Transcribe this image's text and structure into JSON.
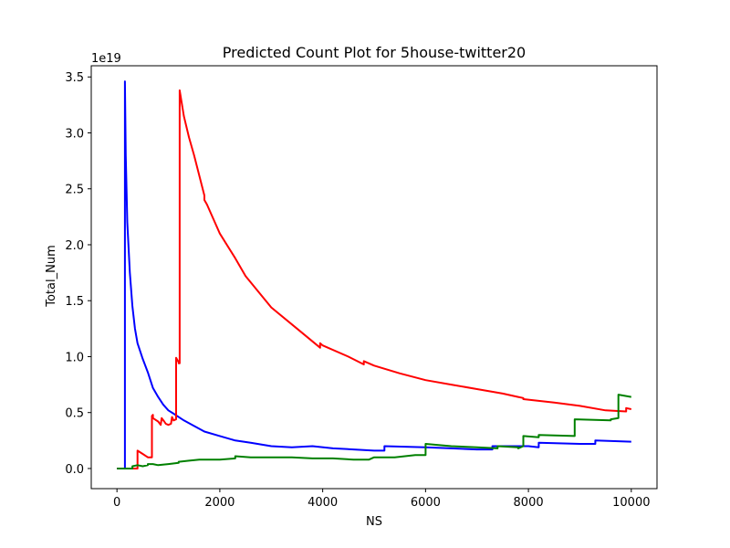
{
  "chart_data": {
    "type": "line",
    "title": "Predicted Count Plot for 5house-twitter20",
    "xlabel": "NS",
    "ylabel": "Total_Num",
    "y_multiplier_label": "1e19",
    "xlim": [
      -500,
      10500
    ],
    "ylim": [
      -0.18,
      3.6
    ],
    "grid": false,
    "legend": "none",
    "x_ticks": [
      0,
      2000,
      4000,
      6000,
      8000,
      10000
    ],
    "x_tick_labels": [
      "0",
      "2000",
      "4000",
      "6000",
      "8000",
      "10000"
    ],
    "y_ticks": [
      0,
      0.5,
      1.0,
      1.5,
      2.0,
      2.5,
      3.0,
      3.5
    ],
    "y_tick_labels": [
      "0.0",
      "0.5",
      "1.0",
      "1.5",
      "2.0",
      "2.5",
      "3.0",
      "3.5"
    ],
    "series": [
      {
        "color": "#0000ff",
        "x": [
          0,
          100,
          155,
          155,
          170,
          200,
          250,
          300,
          350,
          400,
          500,
          600,
          700,
          800,
          900,
          1000,
          1100,
          1200,
          1300,
          1500,
          1700,
          2000,
          2300,
          2600,
          3000,
          3400,
          3800,
          4200,
          4600,
          5000,
          5200,
          5200,
          6000,
          6500,
          7000,
          7300,
          7300,
          8000,
          8200,
          8200,
          9000,
          9300,
          9300,
          10000
        ],
        "y": [
          0,
          0,
          0,
          3.46,
          2.8,
          2.2,
          1.75,
          1.45,
          1.25,
          1.12,
          0.98,
          0.86,
          0.72,
          0.64,
          0.57,
          0.52,
          0.49,
          0.46,
          0.43,
          0.38,
          0.33,
          0.29,
          0.25,
          0.23,
          0.2,
          0.19,
          0.2,
          0.18,
          0.17,
          0.16,
          0.16,
          0.2,
          0.19,
          0.18,
          0.17,
          0.17,
          0.2,
          0.2,
          0.19,
          0.23,
          0.22,
          0.22,
          0.25,
          0.24
        ]
      },
      {
        "color": "#ff0000",
        "x": [
          0,
          380,
          400,
          400,
          500,
          600,
          680,
          680,
          700,
          700,
          800,
          850,
          870,
          920,
          950,
          1000,
          1050,
          1070,
          1100,
          1150,
          1150,
          1200,
          1200,
          1220,
          1220,
          1300,
          1400,
          1500,
          1700,
          1700,
          1750,
          2000,
          2300,
          2500,
          3000,
          3500,
          3950,
          3950,
          4000,
          4500,
          4800,
          4800,
          5000,
          5500,
          6000,
          6500,
          7000,
          7500,
          7800,
          7900,
          7900,
          8500,
          9000,
          9500,
          9900,
          9900,
          10000
        ],
        "y": [
          0,
          0,
          0,
          0.16,
          0.13,
          0.1,
          0.1,
          0.47,
          0.48,
          0.45,
          0.42,
          0.39,
          0.45,
          0.42,
          0.4,
          0.39,
          0.4,
          0.46,
          0.43,
          0.44,
          0.99,
          0.95,
          0.94,
          0.94,
          3.38,
          3.15,
          2.96,
          2.8,
          2.44,
          2.4,
          2.36,
          2.1,
          1.88,
          1.72,
          1.44,
          1.25,
          1.08,
          1.12,
          1.1,
          1.0,
          0.93,
          0.96,
          0.92,
          0.85,
          0.79,
          0.75,
          0.71,
          0.67,
          0.64,
          0.63,
          0.62,
          0.59,
          0.56,
          0.52,
          0.51,
          0.54,
          0.53
        ]
      },
      {
        "color": "#008000",
        "x": [
          0,
          200,
          300,
          300,
          400,
          500,
          600,
          600,
          700,
          800,
          1000,
          1200,
          1200,
          1400,
          1600,
          1800,
          2000,
          2300,
          2300,
          2600,
          3000,
          3400,
          3800,
          4200,
          4600,
          4900,
          5000,
          5400,
          5800,
          6000,
          6000,
          6500,
          7000,
          7400,
          7400,
          7800,
          7800,
          7900,
          7900,
          8200,
          8200,
          8900,
          8900,
          9600,
          9600,
          9750,
          9750,
          10000
        ],
        "y": [
          0,
          0,
          0,
          0.02,
          0.03,
          0.02,
          0.03,
          0.04,
          0.04,
          0.03,
          0.04,
          0.05,
          0.06,
          0.07,
          0.08,
          0.08,
          0.08,
          0.09,
          0.11,
          0.1,
          0.1,
          0.1,
          0.09,
          0.09,
          0.08,
          0.08,
          0.1,
          0.1,
          0.12,
          0.12,
          0.22,
          0.2,
          0.19,
          0.18,
          0.2,
          0.19,
          0.18,
          0.2,
          0.29,
          0.28,
          0.3,
          0.29,
          0.44,
          0.43,
          0.44,
          0.45,
          0.66,
          0.64
        ]
      }
    ]
  }
}
